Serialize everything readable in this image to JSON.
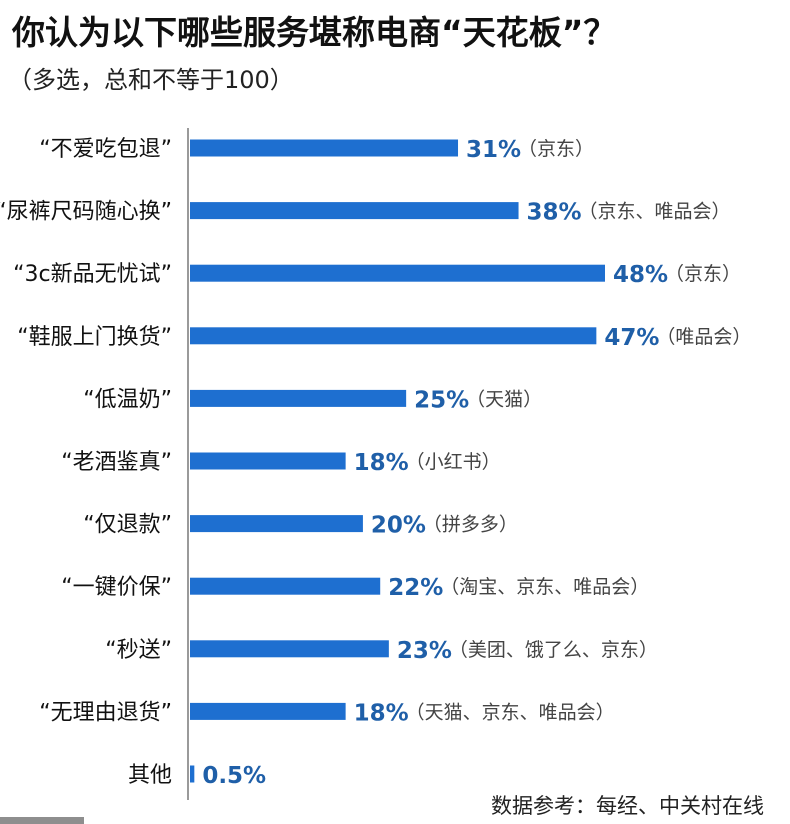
{
  "header": {
    "title": "你认为以下哪些服务堪称电商“天花板”？",
    "subtitle": "（多选，总和不等于100）"
  },
  "footer": {
    "source": "数据参考：每经、中关村在线"
  },
  "colors": {
    "bar": "#1e6fd0",
    "value_text": "#1f5fa8",
    "axis": "#9a9a9a"
  },
  "chart_data": {
    "type": "bar",
    "orientation": "horizontal",
    "title": "你认为以下哪些服务堪称电商“天花板”？",
    "subtitle": "（多选，总和不等于100）",
    "categories": [
      "“不爱吃包退”",
      "“尿裤尺码随心换”",
      "“3c新品无忧试”",
      "“鞋服上门换货”",
      "“低温奶”",
      "“老酒鉴真”",
      "“仅退款”",
      "“一键价保”",
      "“秒送”",
      "“无理由退货”",
      "其他"
    ],
    "values": [
      31,
      38,
      48,
      47,
      25,
      18,
      20,
      22,
      23,
      18,
      0.5
    ],
    "value_labels": [
      "31%",
      "38%",
      "48%",
      "47%",
      "25%",
      "18%",
      "20%",
      "22%",
      "23%",
      "18%",
      "0.5%"
    ],
    "annotations": [
      "（京东）",
      "（京东、唯品会）",
      "（京东）",
      "（唯品会）",
      "（天猫）",
      "（小红书）",
      "（拼多多）",
      "（淘宝、京东、唯品会）",
      "（美团、饿了么、京东）",
      "（天猫、京东、唯品会）",
      ""
    ],
    "unit": "%",
    "xlim": [
      0,
      48
    ],
    "grid": false,
    "legend": "none"
  }
}
